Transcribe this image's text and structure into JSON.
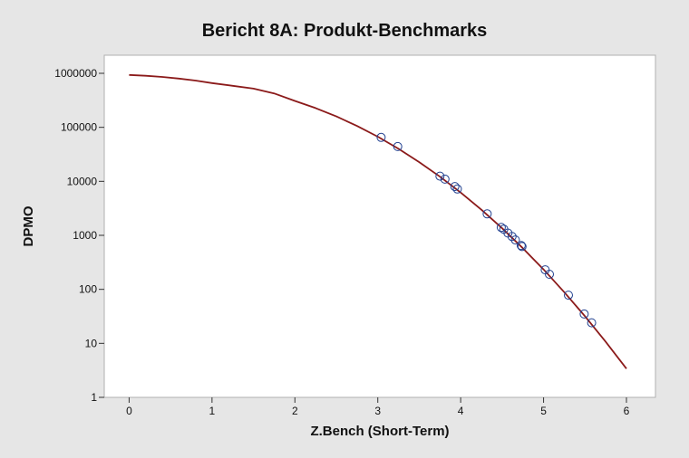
{
  "chart_data": {
    "type": "scatter",
    "title": "Bericht 8A: Produkt-Benchmarks",
    "xlabel": "Z.Bench (Short-Term)",
    "ylabel": "DPMO",
    "xlim": [
      -0.3,
      6.35
    ],
    "ylim": [
      1,
      1000000
    ],
    "yscale": "log",
    "grid": false,
    "xticks": [
      0,
      1,
      2,
      3,
      4,
      5,
      6
    ],
    "yticks": [
      1,
      10,
      100,
      1000,
      10000,
      100000,
      1000000
    ],
    "ytick_labels": [
      "1",
      "10",
      "100",
      "1000",
      "10000",
      "100000",
      "1000000"
    ],
    "series": [
      {
        "kind": "points",
        "marker": "open-circle",
        "color": "#1f3f8f",
        "x": [
          3.04,
          3.24,
          3.75,
          3.81,
          3.93,
          3.96,
          4.32,
          4.49,
          4.52,
          4.57,
          4.62,
          4.66,
          4.73,
          4.74,
          5.02,
          5.07,
          5.3,
          5.49,
          5.58
        ],
        "y": [
          65000,
          44000,
          12500,
          11000,
          8000,
          7200,
          2500,
          1400,
          1300,
          1100,
          950,
          820,
          650,
          620,
          230,
          190,
          78,
          35,
          24
        ]
      },
      {
        "kind": "curve",
        "color": "#8b1a1a",
        "x": [
          0.0,
          0.2,
          0.4,
          0.6,
          0.8,
          1.0,
          1.25,
          1.5,
          1.75,
          2.0,
          2.25,
          2.5,
          2.75,
          3.0,
          3.25,
          3.5,
          3.75,
          4.0,
          4.25,
          4.5,
          4.75,
          5.0,
          5.25,
          5.5,
          5.75,
          6.0
        ],
        "y": [
          933000,
          900000,
          857000,
          800000,
          733000,
          660000,
          588000,
          520000,
          424000,
          308000,
          227000,
          159000,
          106000,
          67000,
          40000,
          22700,
          12200,
          6210,
          2980,
          1350,
          577,
          233,
          88.5,
          31.7,
          10.7,
          3.4
        ]
      }
    ]
  }
}
